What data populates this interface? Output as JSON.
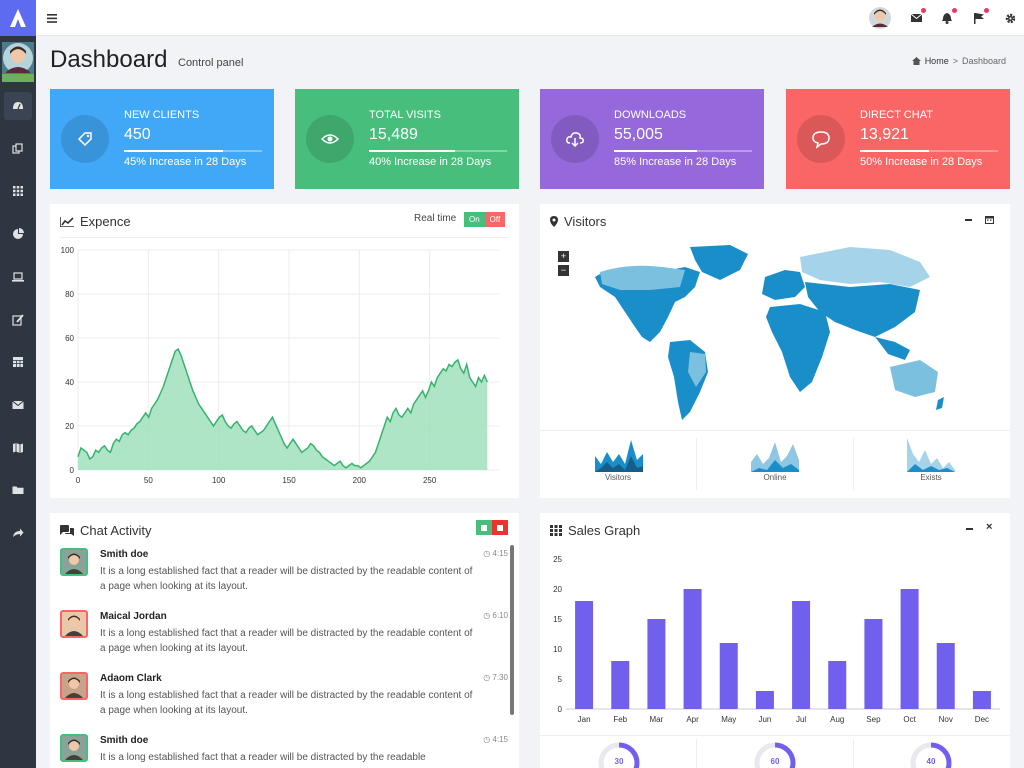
{
  "header": {
    "title": "Dashboard",
    "subtitle": "Control panel",
    "breadcrumb_home": "Home",
    "breadcrumb_sep": ">",
    "breadcrumb_current": "Dashboard"
  },
  "colors": {
    "blue": "#41a8f8",
    "green": "#48be7c",
    "purple": "#9568db",
    "red": "#fa6565",
    "sidebar": "#2e3642",
    "accent": "#7160ee"
  },
  "sidebar": {
    "items": [
      "dashboard-icon",
      "copy-icon",
      "grid-icon",
      "pie-chart-icon",
      "laptop-icon",
      "edit-icon",
      "table-icon",
      "mail-icon",
      "map-icon",
      "folder-icon",
      "share-icon"
    ]
  },
  "stats": [
    {
      "label": "NEW CLIENTS",
      "value": "450",
      "desc": "45% Increase in 28 Days",
      "progress": 0.72,
      "icon": "tag-icon"
    },
    {
      "label": "TOTAL VISITS",
      "value": "15,489",
      "desc": "40% Increase in 28 Days",
      "progress": 0.62,
      "icon": "eye-icon"
    },
    {
      "label": "DOWNLOADS",
      "value": "55,005",
      "desc": "85% Increase in 28 Days",
      "progress": 0.6,
      "icon": "cloud-download-icon"
    },
    {
      "label": "DIRECT CHAT",
      "value": "13,921",
      "desc": "50% Increase in 28 Days",
      "progress": 0.5,
      "icon": "chat-icon"
    }
  ],
  "expence": {
    "title": "Expence",
    "realtime_label": "Real time",
    "on": "On",
    "off": "Off"
  },
  "visitors": {
    "title": "Visitors",
    "zoom_in": "+",
    "zoom_out": "−",
    "mini": [
      "Visitors",
      "Online",
      "Exists"
    ]
  },
  "chat": {
    "title": "Chat Activity",
    "items": [
      {
        "name": "Smith doe",
        "time": "4:15",
        "msg": "It is a long established fact that a reader will be distracted by the readable content of a page when looking at its layout."
      },
      {
        "name": "Maical Jordan",
        "time": "6:10",
        "msg": "It is a long established fact that a reader will be distracted by the readable content of a page when looking at its layout."
      },
      {
        "name": "Adaom Clark",
        "time": "7:30",
        "msg": "It is a long established fact that a reader will be distracted by the readable content of a page when looking at its layout."
      },
      {
        "name": "Smith doe",
        "time": "4:15",
        "msg": "It is a long established fact that a reader will be distracted by the readable"
      }
    ]
  },
  "sales": {
    "title": "Sales Graph",
    "donuts": [
      "30",
      "60",
      "40"
    ]
  },
  "chart_data": [
    {
      "type": "area",
      "title": "Expence",
      "x_ticks": [
        0,
        50,
        100,
        150,
        200,
        250
      ],
      "y_ticks": [
        0,
        20,
        40,
        60,
        80,
        100
      ],
      "xlim": [
        0,
        300
      ],
      "ylim": [
        0,
        100
      ],
      "y": [
        6,
        10,
        9,
        8,
        5,
        6,
        9,
        8,
        10,
        11,
        9,
        8,
        12,
        14,
        13,
        16,
        17,
        16,
        18,
        19,
        21,
        22,
        24,
        26,
        24,
        28,
        30,
        32,
        35,
        38,
        42,
        46,
        50,
        54,
        55,
        52,
        48,
        44,
        40,
        36,
        33,
        30,
        28,
        26,
        24,
        22,
        20,
        22,
        24,
        25,
        22,
        20,
        19,
        21,
        22,
        20,
        18,
        17,
        19,
        20,
        18,
        16,
        17,
        18,
        20,
        22,
        24,
        21,
        18,
        15,
        12,
        10,
        12,
        14,
        12,
        10,
        8,
        9,
        10,
        12,
        11,
        9,
        8,
        6,
        5,
        4,
        3,
        2,
        3,
        4,
        2,
        1,
        2,
        3,
        2,
        2,
        1,
        2,
        3,
        4,
        6,
        8,
        12,
        16,
        20,
        24,
        22,
        26,
        28,
        25,
        24,
        26,
        28,
        26,
        30,
        32,
        34,
        36,
        33,
        36,
        40,
        38,
        42,
        44,
        46,
        45,
        48,
        47,
        49,
        50,
        46,
        44,
        48,
        42,
        40,
        38,
        42,
        40,
        43,
        40
      ]
    },
    {
      "type": "bar",
      "title": "Sales Graph",
      "categories": [
        "Jan",
        "Feb",
        "Mar",
        "Apr",
        "May",
        "Jun",
        "Jul",
        "Aug",
        "Sep",
        "Oct",
        "Nov",
        "Dec"
      ],
      "values": [
        18,
        8,
        15,
        20,
        11,
        3,
        18,
        8,
        15,
        20,
        11,
        3
      ],
      "y_ticks": [
        0,
        5,
        10,
        15,
        20,
        25
      ],
      "ylim": [
        0,
        25
      ]
    }
  ]
}
